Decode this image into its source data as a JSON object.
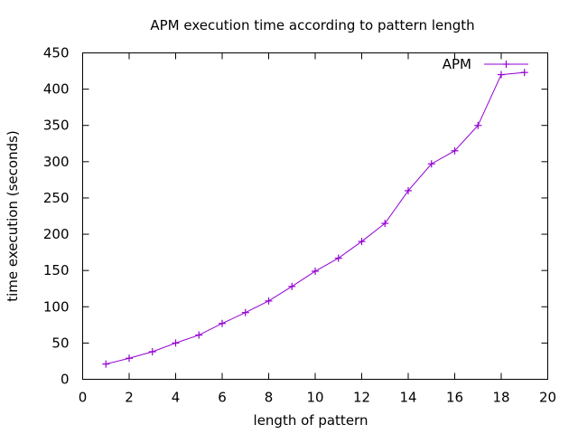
{
  "chart_data": {
    "type": "line",
    "title": "APM execution time according to pattern length",
    "xlabel": "length of pattern",
    "ylabel": "time execution (seconds)",
    "xlim": [
      0,
      20
    ],
    "ylim": [
      0,
      450
    ],
    "xticks": [
      0,
      2,
      4,
      6,
      8,
      10,
      12,
      14,
      16,
      18,
      20
    ],
    "yticks": [
      0,
      50,
      100,
      150,
      200,
      250,
      300,
      350,
      400,
      450
    ],
    "grid": false,
    "legend_position": "top-right",
    "series": [
      {
        "name": "APM",
        "color": "#9400d3",
        "marker": "plus",
        "x": [
          1,
          2,
          3,
          4,
          5,
          6,
          7,
          8,
          9,
          10,
          11,
          12,
          13,
          14,
          15,
          16,
          17,
          18,
          19
        ],
        "y": [
          21,
          29,
          38,
          50,
          61,
          77,
          92,
          108,
          128,
          149,
          167,
          190,
          215,
          260,
          297,
          315,
          350,
          420,
          423
        ]
      }
    ]
  }
}
